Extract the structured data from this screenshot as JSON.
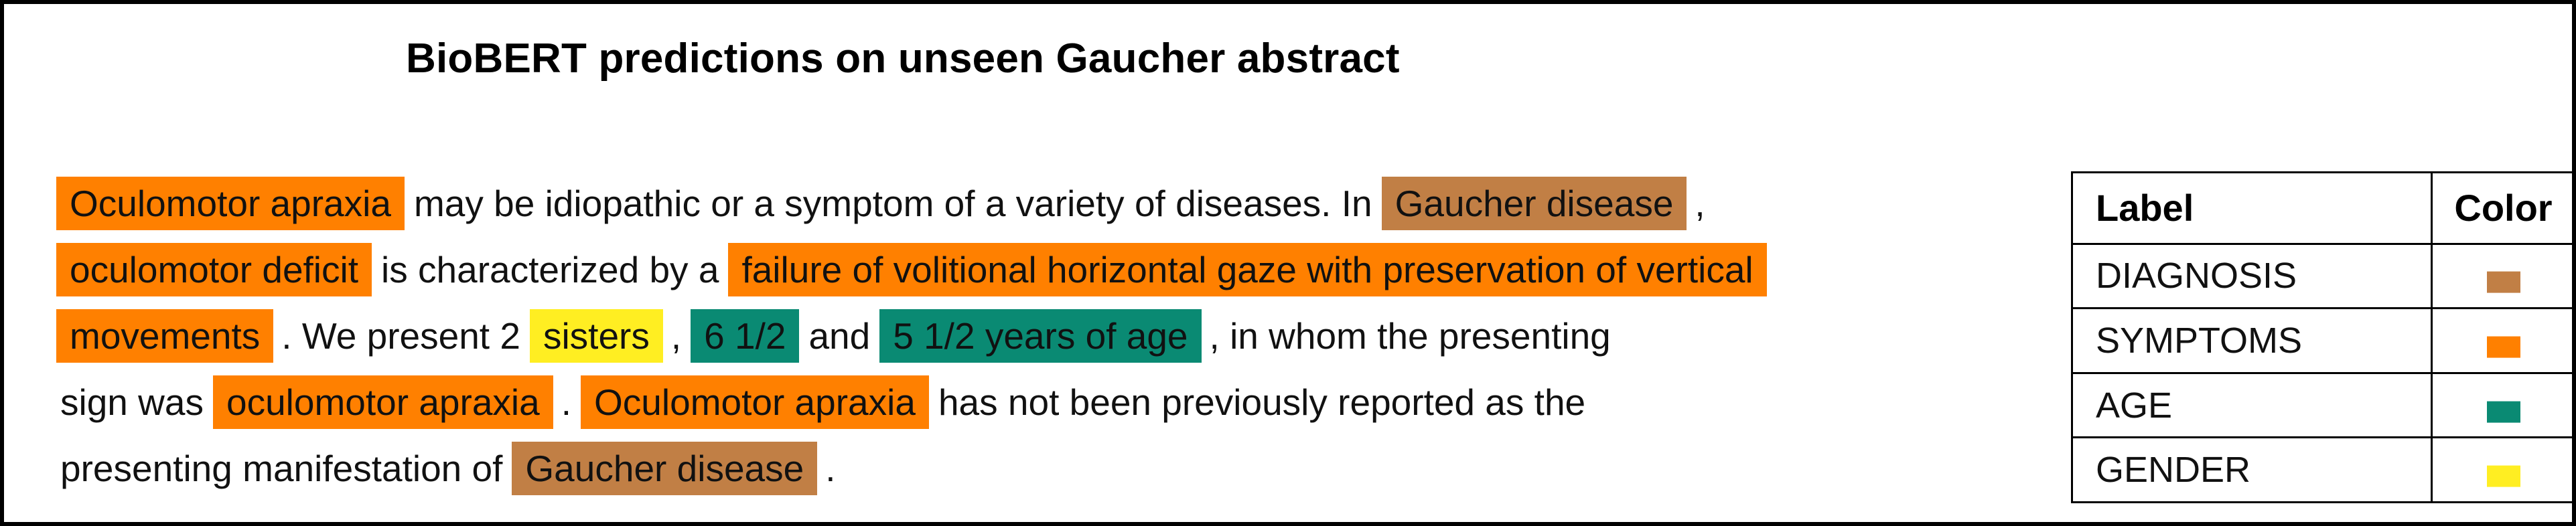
{
  "title": "BioBERT predictions on unseen Gaucher abstract",
  "colors": {
    "DIAGNOSIS": "#c17f45",
    "SYMPTOMS": "#ff8000",
    "AGE": "#0a8a73",
    "GENDER": "#ffee22"
  },
  "abstract_lines": [
    [
      {
        "text": "Oculomotor apraxia",
        "label": "SYMPTOMS"
      },
      {
        "text": "may be idiopathic or a symptom of a variety of diseases. In"
      },
      {
        "text": "Gaucher disease",
        "label": "DIAGNOSIS"
      },
      {
        "text": ","
      }
    ],
    [
      {
        "text": "oculomotor deficit",
        "label": "SYMPTOMS"
      },
      {
        "text": "is characterized by a"
      },
      {
        "text": "failure of volitional horizontal gaze with preservation of vertical",
        "label": "SYMPTOMS"
      }
    ],
    [
      {
        "text": "movements",
        "label": "SYMPTOMS"
      },
      {
        "text": ". We present 2"
      },
      {
        "text": "sisters",
        "label": "GENDER"
      },
      {
        "text": ","
      },
      {
        "text": "6 1/2",
        "label": "AGE"
      },
      {
        "text": "and"
      },
      {
        "text": "5 1/2 years of age",
        "label": "AGE"
      },
      {
        "text": ", in whom the presenting"
      }
    ],
    [
      {
        "text": "sign was"
      },
      {
        "text": "oculomotor apraxia",
        "label": "SYMPTOMS"
      },
      {
        "text": "."
      },
      {
        "text": "Oculomotor apraxia",
        "label": "SYMPTOMS"
      },
      {
        "text": "has not been previously reported as the"
      }
    ],
    [
      {
        "text": "presenting manifestation of"
      },
      {
        "text": "Gaucher disease",
        "label": "DIAGNOSIS"
      },
      {
        "text": "."
      }
    ]
  ],
  "legend": {
    "header_label": "Label",
    "header_color": "Color",
    "rows": [
      {
        "label": "DIAGNOSIS"
      },
      {
        "label": "SYMPTOMS"
      },
      {
        "label": "AGE"
      },
      {
        "label": "GENDER"
      }
    ]
  }
}
